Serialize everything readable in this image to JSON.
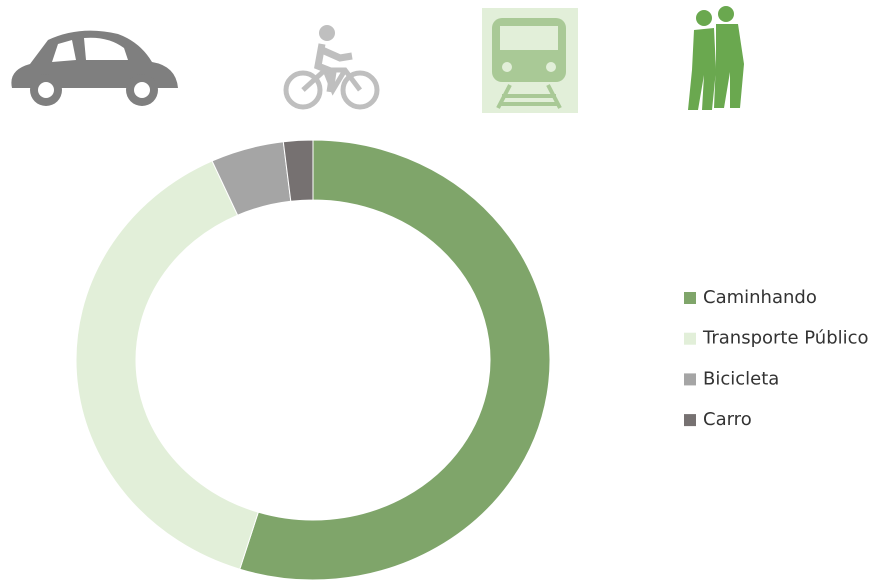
{
  "chart_data": {
    "type": "donut",
    "categories": [
      "Caminhando",
      "Transporte Público",
      "Bicicleta",
      "Carro"
    ],
    "values": [
      55,
      38,
      5,
      2
    ],
    "colors": [
      "#7fa56a",
      "#e2efd9",
      "#a5a5a5",
      "#767171"
    ],
    "legend": "right"
  }
}
